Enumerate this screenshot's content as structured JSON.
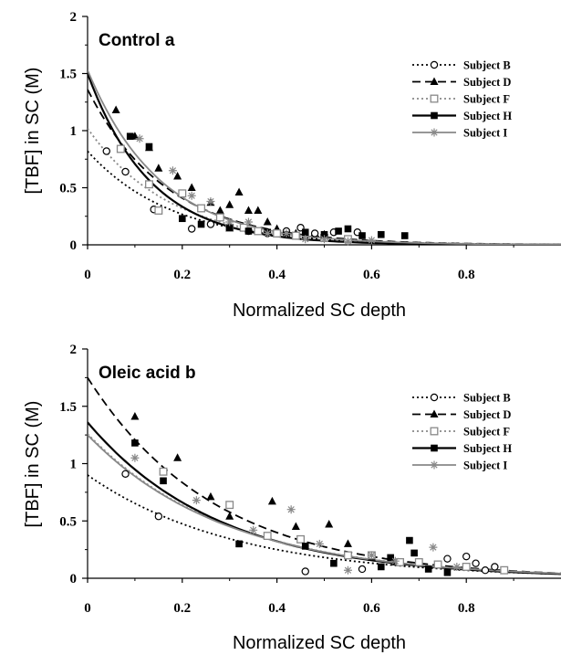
{
  "chart_data": [
    {
      "type": "scatter",
      "title": "Control a",
      "xlabel": "Normalized SC depth",
      "ylabel": "[TBF] in SC (M)",
      "xlim": [
        0,
        1.0
      ],
      "ylim": [
        0,
        2
      ],
      "x_ticks": [
        "0",
        "0.2",
        "0.4",
        "0.6",
        "0.8"
      ],
      "x_tick_values": [
        0,
        0.2,
        0.4,
        0.6,
        0.8
      ],
      "y_ticks": [
        "0",
        "0.5",
        "1",
        "1.5",
        "2"
      ],
      "y_tick_values": [
        0,
        0.5,
        1,
        1.5,
        2
      ],
      "legend_position": "top-right",
      "series": [
        {
          "name": "Subject B",
          "marker": "circle-open",
          "line": "dotted",
          "color": "#000000",
          "fit": {
            "a": 0.82,
            "k": 5.6
          },
          "points": [
            [
              0.04,
              0.82
            ],
            [
              0.08,
              0.64
            ],
            [
              0.14,
              0.31
            ],
            [
              0.22,
              0.14
            ],
            [
              0.26,
              0.18
            ],
            [
              0.3,
              0.15
            ],
            [
              0.34,
              0.12
            ],
            [
              0.38,
              0.1
            ],
            [
              0.42,
              0.12
            ],
            [
              0.45,
              0.15
            ],
            [
              0.48,
              0.1
            ],
            [
              0.52,
              0.11
            ],
            [
              0.57,
              0.11
            ]
          ]
        },
        {
          "name": "Subject D",
          "marker": "triangle-filled",
          "line": "dashed",
          "color": "#000000",
          "fit": {
            "a": 1.36,
            "k": 6.0
          },
          "points": [
            [
              0.06,
              1.18
            ],
            [
              0.1,
              0.95
            ],
            [
              0.13,
              0.85
            ],
            [
              0.15,
              0.67
            ],
            [
              0.19,
              0.6
            ],
            [
              0.22,
              0.5
            ],
            [
              0.26,
              0.37
            ],
            [
              0.28,
              0.3
            ],
            [
              0.3,
              0.35
            ],
            [
              0.32,
              0.46
            ],
            [
              0.34,
              0.3
            ],
            [
              0.36,
              0.3
            ],
            [
              0.38,
              0.2
            ],
            [
              0.4,
              0.14
            ],
            [
              0.44,
              0.1
            ],
            [
              0.5,
              0.09
            ]
          ]
        },
        {
          "name": "Subject F",
          "marker": "square-open",
          "line": "dotted",
          "color": "#888888",
          "fit": {
            "a": 1.02,
            "k": 5.8
          },
          "points": [
            [
              0.07,
              0.84
            ],
            [
              0.13,
              0.53
            ],
            [
              0.15,
              0.3
            ],
            [
              0.2,
              0.45
            ],
            [
              0.24,
              0.32
            ],
            [
              0.28,
              0.24
            ],
            [
              0.3,
              0.15
            ],
            [
              0.33,
              0.15
            ],
            [
              0.36,
              0.12
            ],
            [
              0.4,
              0.1
            ],
            [
              0.44,
              0.08
            ],
            [
              0.5,
              0.06
            ],
            [
              0.55,
              0.05
            ]
          ]
        },
        {
          "name": "Subject H",
          "marker": "square-filled",
          "line": "solid",
          "color": "#000000",
          "fit": {
            "a": 1.5,
            "k": 7.5
          },
          "points": [
            [
              0.09,
              0.95
            ],
            [
              0.13,
              0.86
            ],
            [
              0.2,
              0.23
            ],
            [
              0.24,
              0.18
            ],
            [
              0.3,
              0.15
            ],
            [
              0.34,
              0.12
            ],
            [
              0.38,
              0.11
            ],
            [
              0.42,
              0.09
            ],
            [
              0.46,
              0.11
            ],
            [
              0.5,
              0.09
            ],
            [
              0.53,
              0.12
            ],
            [
              0.55,
              0.14
            ],
            [
              0.58,
              0.08
            ],
            [
              0.62,
              0.09
            ],
            [
              0.67,
              0.08
            ]
          ]
        },
        {
          "name": "Subject I",
          "marker": "asterisk",
          "line": "solid",
          "color": "#888888",
          "fit": {
            "a": 1.53,
            "k": 6.5
          },
          "points": [
            [
              0.11,
              0.93
            ],
            [
              0.18,
              0.65
            ],
            [
              0.22,
              0.43
            ],
            [
              0.26,
              0.38
            ],
            [
              0.3,
              0.2
            ],
            [
              0.34,
              0.2
            ],
            [
              0.38,
              0.1
            ],
            [
              0.42,
              0.1
            ],
            [
              0.46,
              0.05
            ],
            [
              0.5,
              0.05
            ],
            [
              0.55,
              0.03
            ],
            [
              0.6,
              0.04
            ]
          ]
        }
      ]
    },
    {
      "type": "scatter",
      "title": "Oleic acid b",
      "xlabel": "Normalized SC depth",
      "ylabel": "[TBF] in SC (M)",
      "xlim": [
        0,
        1.0
      ],
      "ylim": [
        0,
        2
      ],
      "x_ticks": [
        "0",
        "0.2",
        "0.4",
        "0.6",
        "0.8"
      ],
      "x_tick_values": [
        0,
        0.2,
        0.4,
        0.6,
        0.8
      ],
      "y_ticks": [
        "0",
        "0.5",
        "1",
        "1.5",
        "2"
      ],
      "y_tick_values": [
        0,
        0.5,
        1,
        1.5,
        2
      ],
      "legend_position": "top-right",
      "series": [
        {
          "name": "Subject B",
          "marker": "circle-open",
          "line": "dotted",
          "color": "#000000",
          "fit": {
            "a": 0.9,
            "k": 3.2
          },
          "points": [
            [
              0.08,
              0.91
            ],
            [
              0.15,
              0.54
            ],
            [
              0.46,
              0.06
            ],
            [
              0.58,
              0.08
            ],
            [
              0.7,
              0.14
            ],
            [
              0.76,
              0.17
            ],
            [
              0.8,
              0.19
            ],
            [
              0.82,
              0.13
            ],
            [
              0.84,
              0.07
            ],
            [
              0.86,
              0.1
            ]
          ]
        },
        {
          "name": "Subject D",
          "marker": "triangle-filled",
          "line": "dashed",
          "color": "#000000",
          "fit": {
            "a": 1.75,
            "k": 3.7
          },
          "points": [
            [
              0.1,
              1.41
            ],
            [
              0.19,
              1.05
            ],
            [
              0.26,
              0.71
            ],
            [
              0.3,
              0.54
            ],
            [
              0.39,
              0.67
            ],
            [
              0.44,
              0.45
            ],
            [
              0.51,
              0.47
            ],
            [
              0.55,
              0.3
            ],
            [
              0.6,
              0.18
            ],
            [
              0.65,
              0.14
            ]
          ]
        },
        {
          "name": "Subject F",
          "marker": "square-open",
          "line": "dotted",
          "color": "#888888",
          "fit": {
            "a": 1.26,
            "k": 3.4
          },
          "points": [
            [
              0.16,
              0.93
            ],
            [
              0.3,
              0.64
            ],
            [
              0.38,
              0.37
            ],
            [
              0.45,
              0.34
            ],
            [
              0.55,
              0.2
            ],
            [
              0.6,
              0.2
            ],
            [
              0.66,
              0.14
            ],
            [
              0.7,
              0.14
            ],
            [
              0.74,
              0.12
            ],
            [
              0.8,
              0.1
            ],
            [
              0.88,
              0.07
            ]
          ]
        },
        {
          "name": "Subject H",
          "marker": "square-filled",
          "line": "solid",
          "color": "#000000",
          "fit": {
            "a": 1.36,
            "k": 3.6
          },
          "points": [
            [
              0.1,
              1.18
            ],
            [
              0.16,
              0.85
            ],
            [
              0.32,
              0.3
            ],
            [
              0.46,
              0.28
            ],
            [
              0.52,
              0.13
            ],
            [
              0.62,
              0.1
            ],
            [
              0.64,
              0.18
            ],
            [
              0.68,
              0.33
            ],
            [
              0.69,
              0.22
            ],
            [
              0.72,
              0.08
            ],
            [
              0.76,
              0.05
            ]
          ]
        },
        {
          "name": "Subject I",
          "marker": "asterisk",
          "line": "solid",
          "color": "#888888",
          "fit": {
            "a": 1.25,
            "k": 3.4
          },
          "points": [
            [
              0.1,
              1.05
            ],
            [
              0.23,
              0.68
            ],
            [
              0.35,
              0.42
            ],
            [
              0.43,
              0.6
            ],
            [
              0.49,
              0.3
            ],
            [
              0.55,
              0.07
            ],
            [
              0.6,
              0.2
            ],
            [
              0.65,
              0.15
            ],
            [
              0.73,
              0.27
            ],
            [
              0.78,
              0.1
            ]
          ]
        }
      ]
    }
  ]
}
